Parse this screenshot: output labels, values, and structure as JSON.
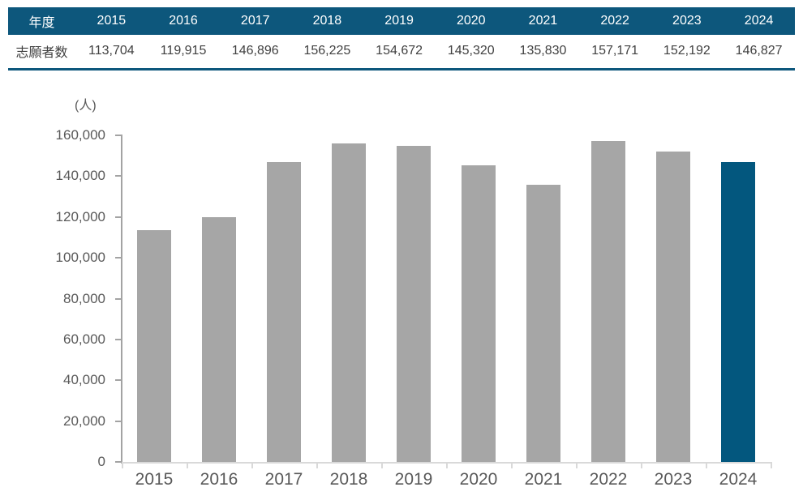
{
  "table": {
    "header_label": "年度",
    "row_label": "志願者数",
    "years": [
      "2015",
      "2016",
      "2017",
      "2018",
      "2019",
      "2020",
      "2021",
      "2022",
      "2023",
      "2024"
    ],
    "values": [
      "113,704",
      "119,915",
      "146,896",
      "156,225",
      "154,672",
      "145,320",
      "135,830",
      "157,171",
      "152,192",
      "146,827"
    ]
  },
  "chart_data": {
    "type": "bar",
    "title": "",
    "xlabel": "",
    "ylabel": "(人)",
    "unit_label": "(人)",
    "categories": [
      "2015",
      "2016",
      "2017",
      "2018",
      "2019",
      "2020",
      "2021",
      "2022",
      "2023",
      "2024"
    ],
    "values": [
      113704,
      119915,
      146896,
      156225,
      154672,
      145320,
      135830,
      157171,
      152192,
      146827
    ],
    "ylim": [
      0,
      160000
    ],
    "ytick_step": 20000,
    "ytick_labels": [
      "0",
      "20,000",
      "40,000",
      "60,000",
      "80,000",
      "100,000",
      "120,000",
      "140,000",
      "160,000"
    ],
    "grid": false,
    "legend": false,
    "highlight_index": 9,
    "highlight_category": "2024"
  },
  "colors": {
    "table_header_bg": "#0d577c",
    "table_header_text": "#ffffff",
    "table_text": "#404040",
    "table_border": "#0d577c",
    "bar": "#a6a6a6",
    "bar_highlight": "#03577e",
    "axis_text": "#595959",
    "y_axis_line": "#a3a3a3",
    "x_axis_line": "#d9d9d9"
  }
}
